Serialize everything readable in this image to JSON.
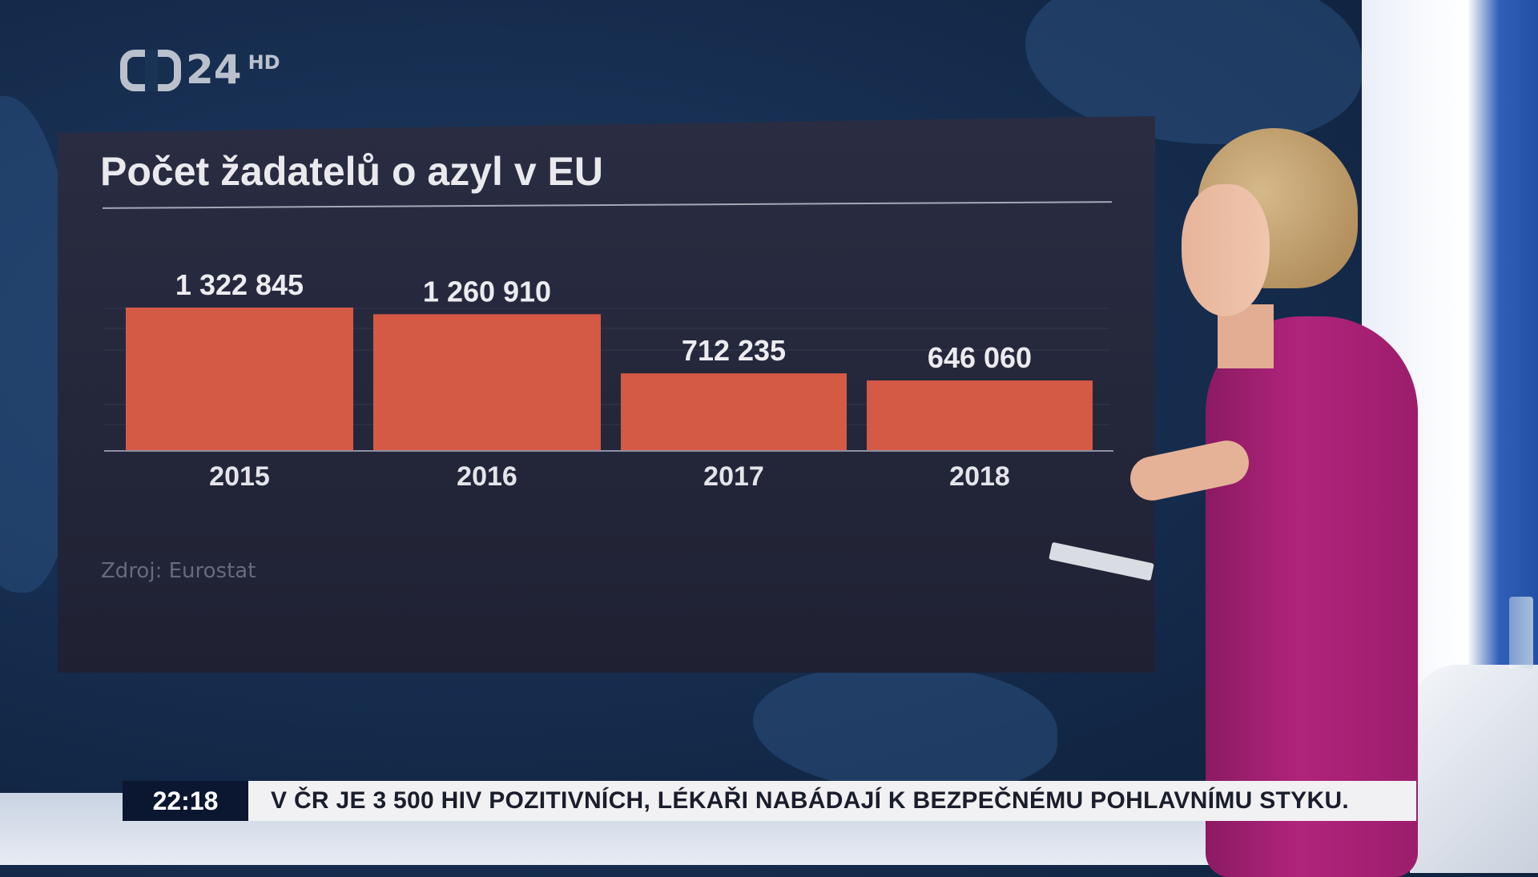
{
  "channel": {
    "logo_number": "24",
    "logo_suffix": "HD"
  },
  "chart_data": {
    "type": "bar",
    "title": "Počet žadatelů o azyl v EU",
    "categories": [
      "2015",
      "2016",
      "2017",
      "2018"
    ],
    "values": [
      1322845,
      1260910,
      712235,
      646060
    ],
    "value_labels": [
      "1 322 845",
      "1 260 910",
      "712 235",
      "646 060"
    ],
    "xlabel": "",
    "ylabel": "",
    "ylim": [
      0,
      1322845
    ],
    "grid": false,
    "bar_color": "#d55a45",
    "source": "Zdroj: Eurostat"
  },
  "ticker": {
    "time": "22:18",
    "headline": "V ČR  JE 3 500 HIV POZITIVNÍCH, LÉKAŘI NABÁDAJÍ K BEZPEČNÉMU POHLAVNÍMU STYKU."
  }
}
